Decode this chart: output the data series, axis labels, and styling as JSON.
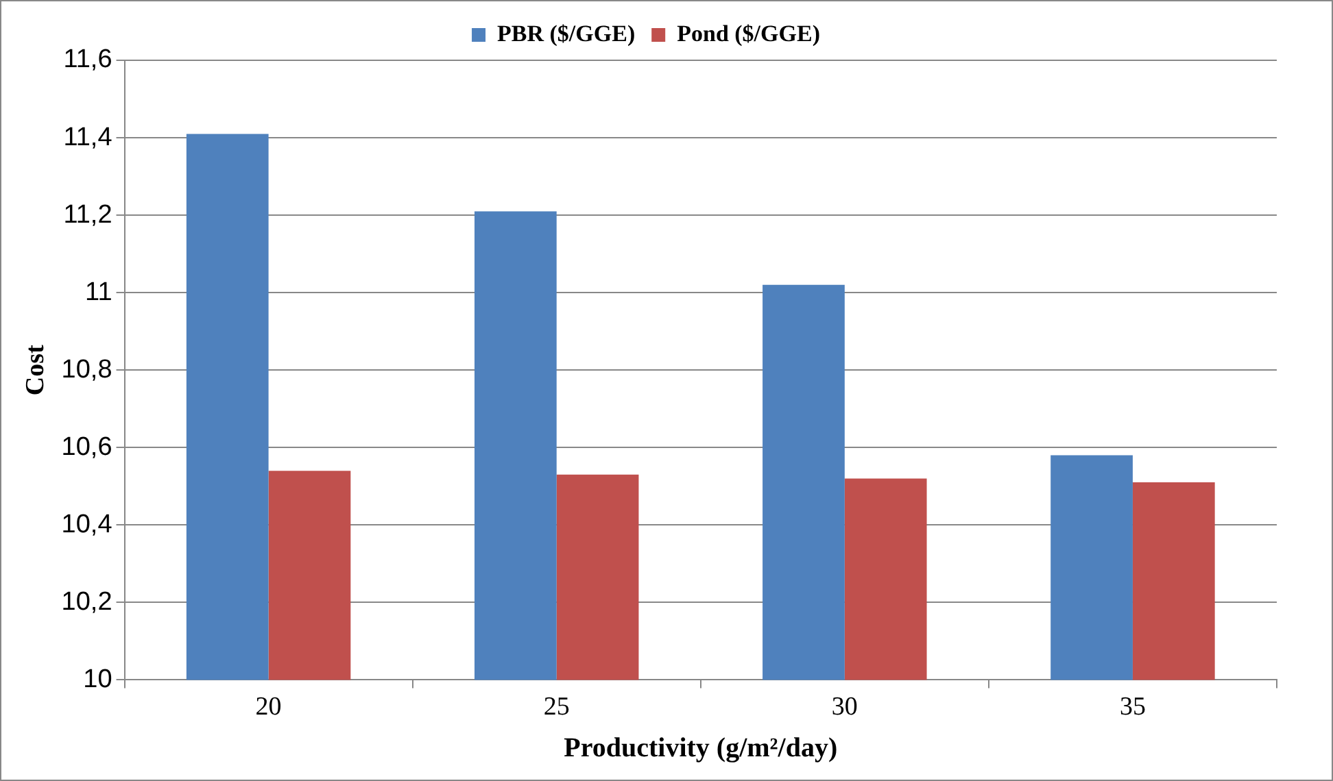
{
  "chart_data": {
    "type": "bar",
    "xlabel": "Productivity (g/m²/day)",
    "ylabel": "Cost",
    "categories": [
      "20",
      "25",
      "30",
      "35"
    ],
    "series": [
      {
        "name": "PBR ($/GGE)",
        "color": "#4f81bd",
        "values": [
          11.41,
          11.21,
          11.02,
          10.58
        ]
      },
      {
        "name": "Pond ($/GGE)",
        "color": "#c0504d",
        "values": [
          10.54,
          10.53,
          10.52,
          10.51
        ]
      }
    ],
    "ylim": [
      10,
      11.6
    ],
    "yticks": [
      {
        "value": 10,
        "label": "10"
      },
      {
        "value": 10.2,
        "label": "10,2"
      },
      {
        "value": 10.4,
        "label": "10,4"
      },
      {
        "value": 10.6,
        "label": "10,6"
      },
      {
        "value": 10.8,
        "label": "10,8"
      },
      {
        "value": 11,
        "label": "11"
      },
      {
        "value": 11.2,
        "label": "11,2"
      },
      {
        "value": 11.4,
        "label": "11,4"
      },
      {
        "value": 11.6,
        "label": "11,6"
      }
    ],
    "grid": "y",
    "legend": "top"
  }
}
